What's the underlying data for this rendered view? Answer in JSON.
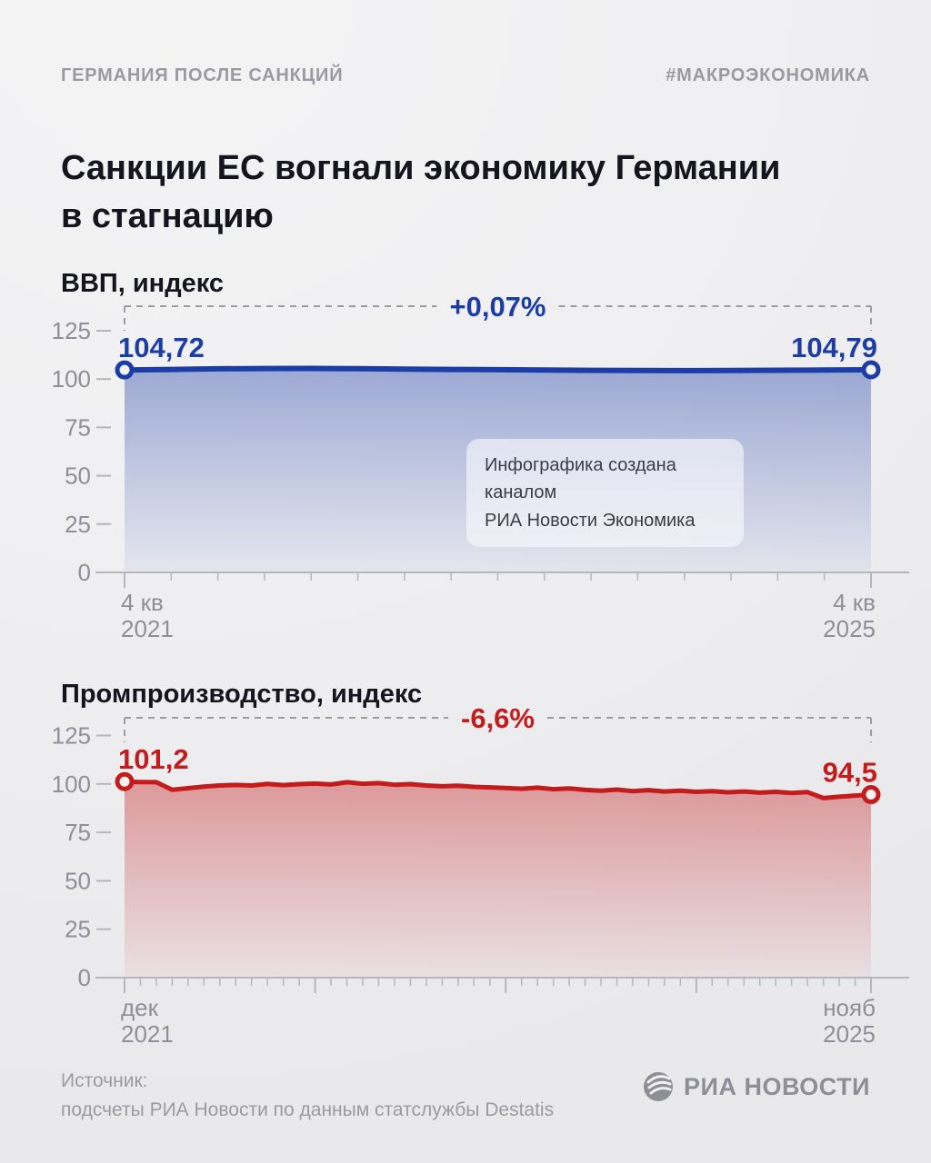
{
  "header": {
    "kicker": "ГЕРМАНИЯ ПОСЛЕ САНКЦИЙ",
    "hashtag": "#МАКРОЭКОНОМИКА"
  },
  "title": {
    "line1": "Санкции ЕС вогнали экономику Германии",
    "line2": "в стагнацию"
  },
  "watermark": {
    "line1": "Инфографика создана каналом",
    "line2": "РИА Новости Экономика"
  },
  "footer": {
    "source_label": "Источник:",
    "source_text": "подсчеты РИА Новости по данным статслужбы Destatis",
    "logo_text": "РИА НОВОСТИ"
  },
  "colors": {
    "accent_blue": "#1d3da6",
    "accent_red": "#c41c1c",
    "text_dark": "#15151f",
    "text_gray": "#8f8f97",
    "axis_gray": "#b6b6bb",
    "dash_gray": "#9c9ca3",
    "marker_fill": "#f2f2f4"
  },
  "chart_data": [
    {
      "type": "area",
      "title": "ВВП, индекс",
      "change_label": "+0,07%",
      "start_value_label": "104,72",
      "end_value_label": "104,79",
      "x_start_label": [
        "4 кв",
        "2021"
      ],
      "x_end_label": [
        "4 кв",
        "2025"
      ],
      "yticks": [
        0,
        25,
        50,
        75,
        100,
        125
      ],
      "ylim": [
        0,
        135
      ],
      "grid": false,
      "legend": "none",
      "color": "#1d3da6",
      "x_unit": "quarter",
      "long_tick_indices": [
        0,
        16
      ],
      "values": [
        104.72,
        105.0,
        105.3,
        105.45,
        105.5,
        105.35,
        105.15,
        105.0,
        104.85,
        104.65,
        104.5,
        104.4,
        104.35,
        104.45,
        104.55,
        104.65,
        104.79
      ]
    },
    {
      "type": "area",
      "title": "Промпроизводство, индекс",
      "change_label": "-6,6%",
      "start_value_label": "101,2",
      "end_value_label": "94,5",
      "x_start_label": [
        "дек",
        "2021"
      ],
      "x_end_label": [
        "нояб",
        "2025"
      ],
      "yticks": [
        0,
        25,
        50,
        75,
        100,
        125
      ],
      "ylim": [
        0,
        135
      ],
      "grid": false,
      "legend": "none",
      "color": "#c41c1c",
      "x_unit": "month",
      "long_tick_indices": [
        0,
        12,
        24,
        36,
        47
      ],
      "values": [
        101.2,
        101.0,
        100.9,
        97.0,
        97.8,
        98.6,
        99.2,
        99.5,
        99.2,
        100.0,
        99.4,
        99.9,
        100.2,
        99.7,
        100.9,
        100.1,
        100.4,
        99.6,
        99.9,
        99.2,
        98.8,
        99.1,
        98.5,
        98.2,
        97.9,
        97.5,
        98.1,
        97.3,
        97.7,
        96.9,
        96.5,
        97.1,
        96.3,
        96.8,
        96.1,
        96.5,
        95.9,
        96.3,
        95.7,
        96.1,
        95.5,
        95.9,
        95.3,
        95.8,
        92.7,
        93.4,
        94.0,
        94.5
      ]
    }
  ]
}
